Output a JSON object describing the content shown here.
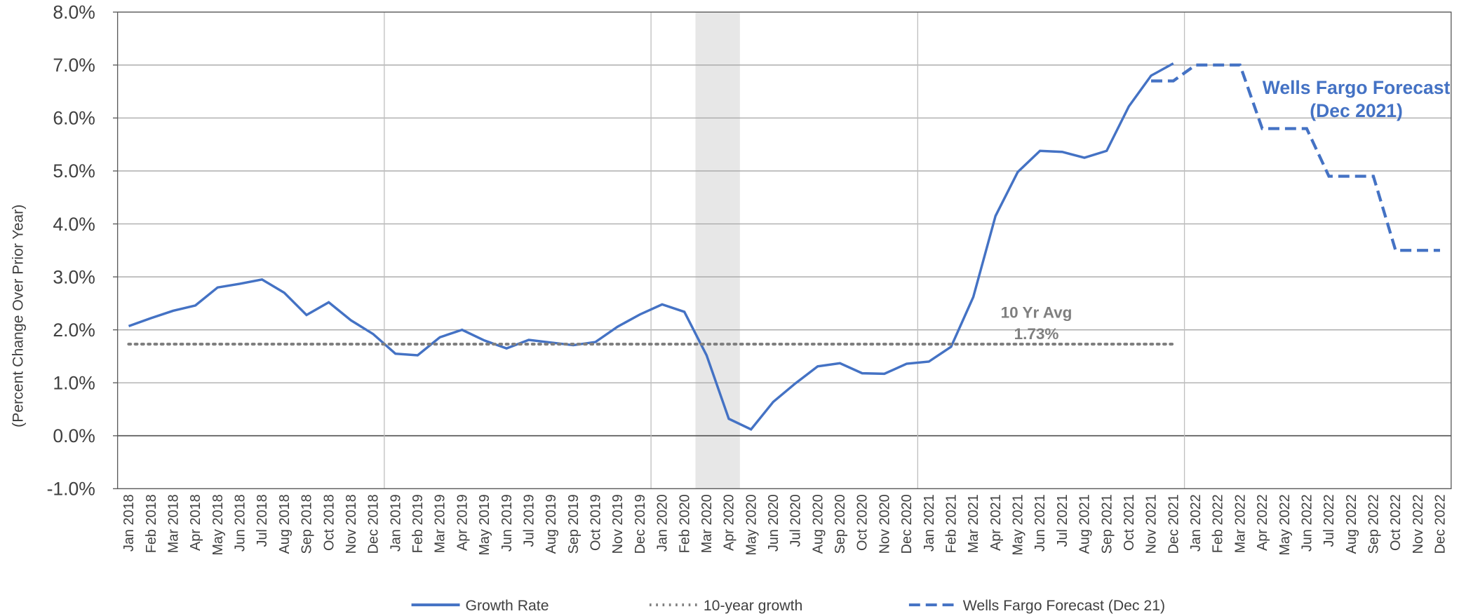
{
  "chart_data": {
    "type": "line",
    "y_label": "(Percent Change Over Prior Year)",
    "categories": [
      "Jan 2018",
      "Feb 2018",
      "Mar 2018",
      "Apr 2018",
      "May 2018",
      "Jun 2018",
      "Jul 2018",
      "Aug 2018",
      "Sep 2018",
      "Oct 2018",
      "Nov 2018",
      "Dec 2018",
      "Jan 2019",
      "Feb 2019",
      "Mar 2019",
      "Apr 2019",
      "May 2019",
      "Jun 2019",
      "Jul 2019",
      "Aug 2019",
      "Sep 2019",
      "Oct 2019",
      "Nov 2019",
      "Dec 2019",
      "Jan 2020",
      "Feb 2020",
      "Mar 2020",
      "Apr 2020",
      "May 2020",
      "Jun 2020",
      "Jul 2020",
      "Aug 2020",
      "Sep 2020",
      "Oct 2020",
      "Nov 2020",
      "Dec 2020",
      "Jan 2021",
      "Feb 2021",
      "Mar 2021",
      "Apr 2021",
      "May 2021",
      "Jun 2021",
      "Jul 2021",
      "Aug 2021",
      "Sep 2021",
      "Oct 2021",
      "Nov 2021",
      "Dec 2021",
      "Jan 2022",
      "Feb 2022",
      "Mar 2022",
      "Apr 2022",
      "May 2022",
      "Jun 2022",
      "Jul 2022",
      "Aug 2022",
      "Sep 2022",
      "Oct 2022",
      "Nov 2022",
      "Dec 2022"
    ],
    "series": [
      {
        "name": "Growth Rate",
        "color": "#4472c4",
        "style": "solid",
        "values": [
          2.07,
          2.22,
          2.36,
          2.46,
          2.8,
          2.87,
          2.95,
          2.7,
          2.28,
          2.52,
          2.18,
          1.92,
          1.55,
          1.52,
          1.86,
          2.0,
          1.8,
          1.65,
          1.81,
          1.76,
          1.71,
          1.77,
          2.06,
          2.29,
          2.48,
          2.34,
          1.52,
          0.32,
          0.12,
          0.64,
          0.99,
          1.31,
          1.37,
          1.18,
          1.17,
          1.36,
          1.4,
          1.68,
          2.62,
          4.15,
          4.98,
          5.38,
          5.36,
          5.25,
          5.38,
          6.22,
          6.8,
          7.03,
          null,
          null,
          null,
          null,
          null,
          null,
          null,
          null,
          null,
          null,
          null,
          null
        ]
      },
      {
        "name": "10-year growth",
        "color": "#7f7f7f",
        "style": "dotted",
        "values": [
          1.73,
          1.73,
          1.73,
          1.73,
          1.73,
          1.73,
          1.73,
          1.73,
          1.73,
          1.73,
          1.73,
          1.73,
          1.73,
          1.73,
          1.73,
          1.73,
          1.73,
          1.73,
          1.73,
          1.73,
          1.73,
          1.73,
          1.73,
          1.73,
          1.73,
          1.73,
          1.73,
          1.73,
          1.73,
          1.73,
          1.73,
          1.73,
          1.73,
          1.73,
          1.73,
          1.73,
          1.73,
          1.73,
          1.73,
          1.73,
          1.73,
          1.73,
          1.73,
          1.73,
          1.73,
          1.73,
          1.73,
          1.73,
          null,
          null,
          null,
          null,
          null,
          null,
          null,
          null,
          null,
          null,
          null,
          null
        ]
      },
      {
        "name": "Wells Fargo Forecast (Dec 21)",
        "color": "#4472c4",
        "style": "dashed",
        "values": [
          null,
          null,
          null,
          null,
          null,
          null,
          null,
          null,
          null,
          null,
          null,
          null,
          null,
          null,
          null,
          null,
          null,
          null,
          null,
          null,
          null,
          null,
          null,
          null,
          null,
          null,
          null,
          null,
          null,
          null,
          null,
          null,
          null,
          null,
          null,
          null,
          null,
          null,
          null,
          null,
          null,
          null,
          null,
          null,
          null,
          null,
          6.7,
          6.7,
          7.0,
          7.0,
          7.0,
          5.8,
          5.8,
          5.8,
          4.9,
          4.9,
          4.9,
          3.5,
          3.5,
          3.5
        ]
      }
    ],
    "shade": {
      "from": "Mar 2020",
      "to": "Apr 2020",
      "color": "#e7e7e7"
    },
    "annotations": [
      {
        "lines": [
          "10 Yr Avg",
          "1.73%"
        ],
        "color": "#7f7f7f"
      },
      {
        "lines": [
          "Wells Fargo Forecast",
          "(Dec 2021)"
        ],
        "color": "#4472c4"
      }
    ],
    "ylim": [
      -1,
      8
    ],
    "yticks": [
      {
        "value": -1,
        "label": "-1.0%"
      },
      {
        "value": 0,
        "label": "0.0%"
      },
      {
        "value": 1,
        "label": "1.0%"
      },
      {
        "value": 2,
        "label": "2.0%"
      },
      {
        "value": 3,
        "label": "3.0%"
      },
      {
        "value": 4,
        "label": "4.0%"
      },
      {
        "value": 5,
        "label": "5.0%"
      },
      {
        "value": 6,
        "label": "6.0%"
      },
      {
        "value": 7,
        "label": "7.0%"
      },
      {
        "value": 8,
        "label": "8.0%"
      }
    ],
    "grid": true,
    "legend": "bottom"
  }
}
